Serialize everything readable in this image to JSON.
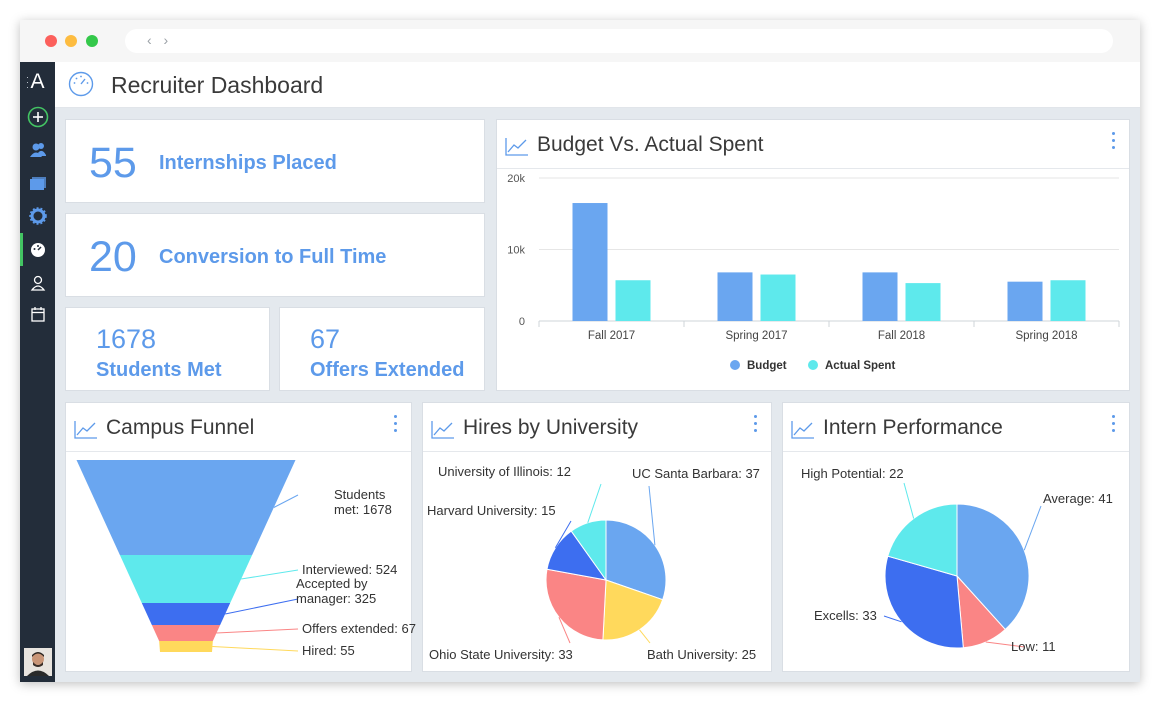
{
  "app": {
    "title": "Recruiter Dashboard",
    "logo": "A"
  },
  "browser": {
    "nav_arrows": "‹ ›"
  },
  "colors": {
    "blue": "#6aa6f0",
    "cyan": "#5ee9ec",
    "dark_blue": "#3d6ef0",
    "salmon": "#fa8585",
    "yellow": "#ffd95c",
    "sidebar": "#232d3a",
    "accent_green": "#43c463"
  },
  "sidebar": {
    "items": [
      {
        "icon": "add-icon"
      },
      {
        "icon": "users-icon"
      },
      {
        "icon": "folder-icon"
      },
      {
        "icon": "settings-icon"
      },
      {
        "icon": "dashboard-icon",
        "active": true
      },
      {
        "icon": "user-icon"
      },
      {
        "icon": "calendar-icon"
      }
    ]
  },
  "kpis": {
    "internships": {
      "value": "55",
      "label": "Internships Placed"
    },
    "conversion": {
      "value": "20",
      "label": "Conversion to Full Time"
    },
    "students": {
      "value": "1678",
      "label": "Students Met"
    },
    "offers": {
      "value": "67",
      "label": "Offers Extended"
    }
  },
  "budget_card": {
    "title": "Budget Vs. Actual Spent"
  },
  "funnel_card": {
    "title": "Campus Funnel"
  },
  "hires_card": {
    "title": "Hires by University"
  },
  "performance_card": {
    "title": "Intern Performance"
  },
  "chart_data": [
    {
      "type": "bar",
      "title": "Budget Vs. Actual Spent",
      "categories": [
        "Fall 2017",
        "Spring 2017",
        "Fall 2018",
        "Spring 2018"
      ],
      "series": [
        {
          "name": "Budget",
          "values": [
            16500,
            6800,
            6800,
            5500
          ]
        },
        {
          "name": "Actual Spent",
          "values": [
            5700,
            6500,
            5300,
            5700
          ]
        }
      ],
      "ylim": [
        0,
        20000
      ],
      "yticks": [
        "0",
        "10k",
        "20k"
      ],
      "legend": "bottom",
      "grid": true
    },
    {
      "type": "funnel",
      "title": "Campus Funnel",
      "stages": [
        {
          "label": "Students met: 1678",
          "label_lines": [
            "Students",
            "met: 1678"
          ],
          "value": 1678
        },
        {
          "label": "Interviewed: 524",
          "label_lines": [
            "Interviewed: 524"
          ],
          "value": 524
        },
        {
          "label": "Accepted by manager: 325",
          "label_lines": [
            "Accepted by",
            "manager: 325"
          ],
          "value": 325
        },
        {
          "label": "Offers extended: 67",
          "label_lines": [
            "Offers extended: 67"
          ],
          "value": 67
        },
        {
          "label": "Hired: 55",
          "label_lines": [
            "Hired: 55"
          ],
          "value": 55
        }
      ]
    },
    {
      "type": "pie",
      "title": "Hires by University",
      "slices": [
        {
          "label": "UC Santa Barbara: 37",
          "value": 37
        },
        {
          "label": "Bath University: 25",
          "value": 25
        },
        {
          "label": "Ohio State University: 33",
          "value": 33
        },
        {
          "label": "Harvard University: 15",
          "value": 15
        },
        {
          "label": "University of Illinois: 12",
          "value": 12
        }
      ]
    },
    {
      "type": "pie",
      "title": "Intern Performance",
      "slices": [
        {
          "label": "Average: 41",
          "value": 41
        },
        {
          "label": "Low: 11",
          "value": 11
        },
        {
          "label": "Excells: 33",
          "value": 33
        },
        {
          "label": "High Potential: 22",
          "value": 22
        }
      ]
    }
  ]
}
